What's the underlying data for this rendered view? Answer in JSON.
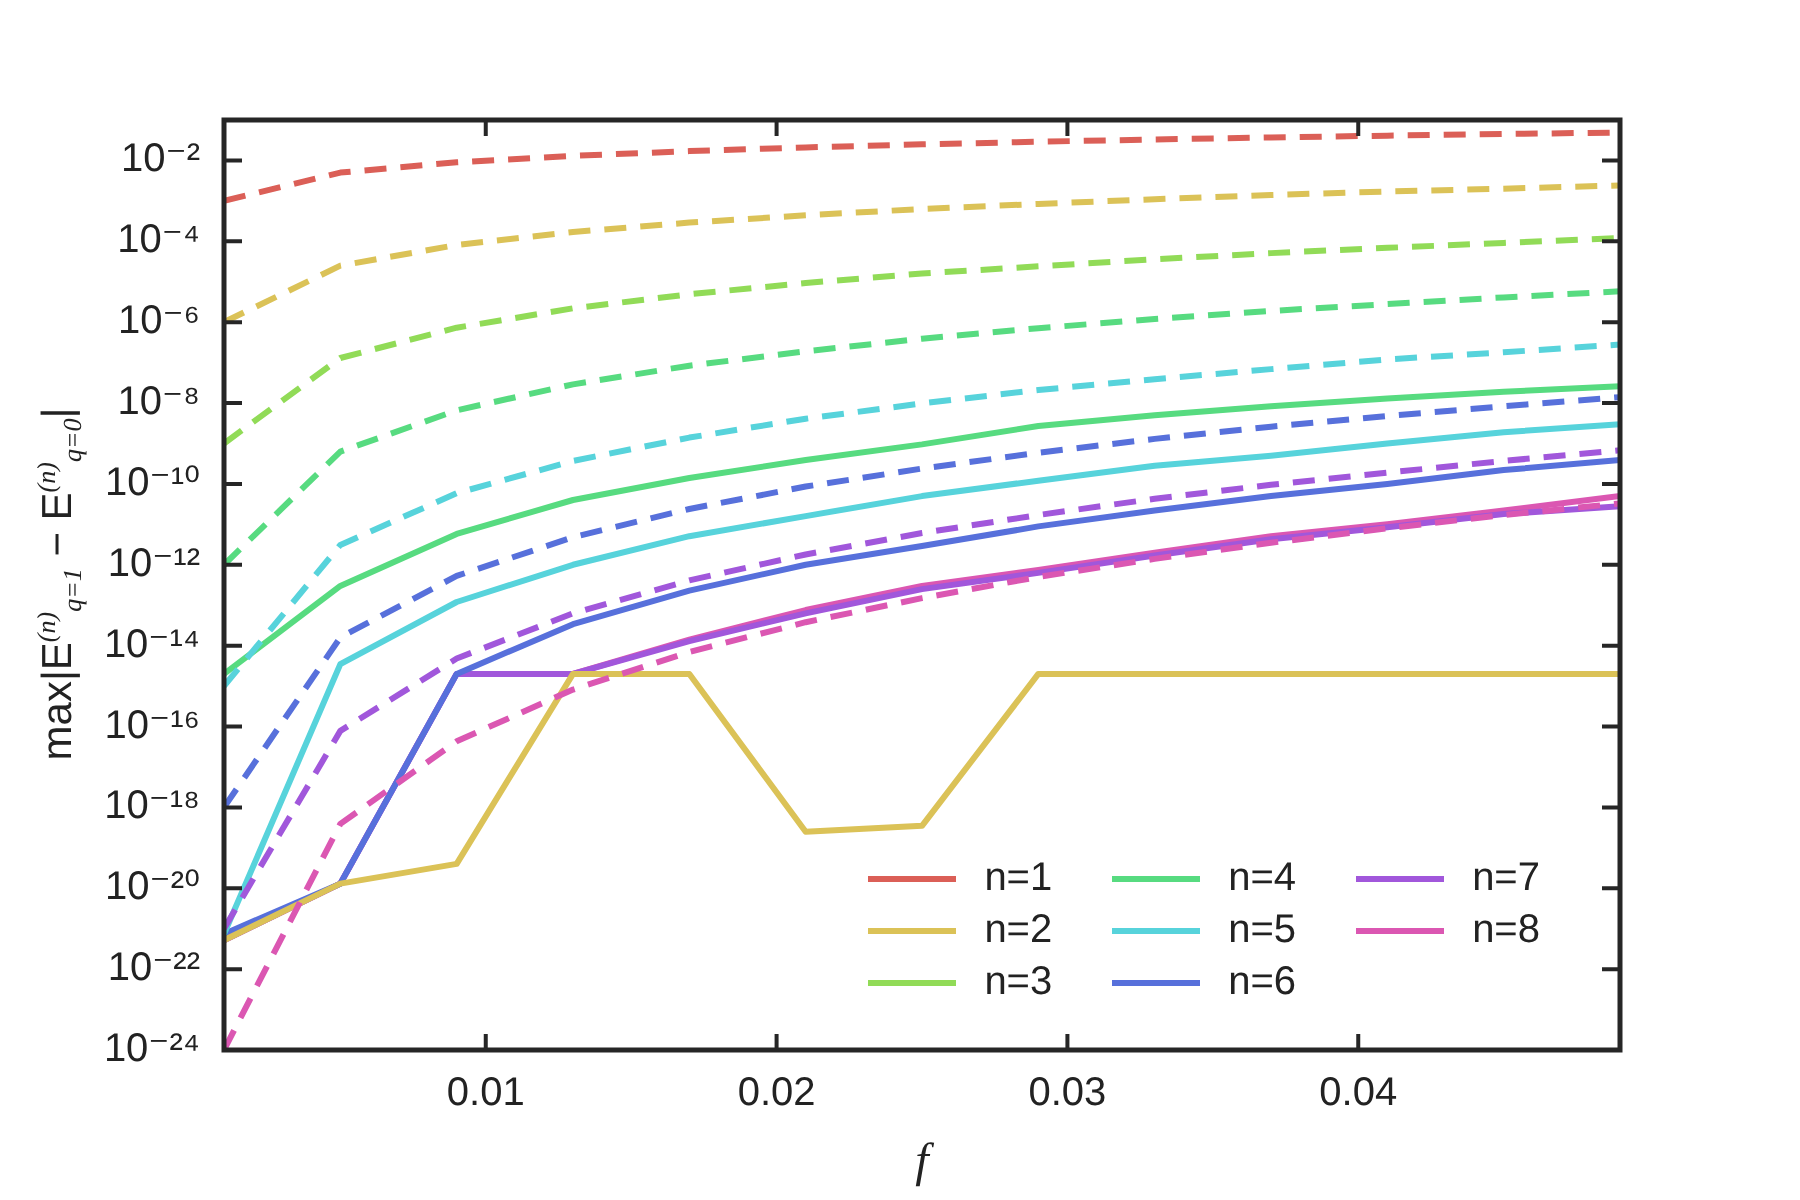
{
  "chart_data": {
    "type": "line",
    "xlabel": "f",
    "ylabel": "max|E$^{(n)}$$_{q=1}$ − E$^{(n)}$$_{q=0}$|",
    "x": [
      0.001,
      0.005,
      0.009,
      0.013,
      0.017,
      0.021,
      0.025,
      0.029,
      0.033,
      0.037,
      0.041,
      0.045,
      0.049
    ],
    "xlim": [
      0.001,
      0.049
    ],
    "xticks": [
      0.01,
      0.02,
      0.03,
      0.04
    ],
    "ylim": [
      1e-24,
      0.1
    ],
    "log": "y",
    "yticks": [
      {
        "value": 1e-24,
        "label": "10⁻²⁴"
      },
      {
        "value": 1e-22,
        "label": "10⁻²²"
      },
      {
        "value": 1e-20,
        "label": "10⁻²⁰"
      },
      {
        "value": 1e-18,
        "label": "10⁻¹⁸"
      },
      {
        "value": 1e-16,
        "label": "10⁻¹⁶"
      },
      {
        "value": 1e-14,
        "label": "10⁻¹⁴"
      },
      {
        "value": 1e-12,
        "label": "10⁻¹²"
      },
      {
        "value": 1e-10,
        "label": "10⁻¹⁰"
      },
      {
        "value": 1e-08,
        "label": "10⁻⁸"
      },
      {
        "value": 1e-06,
        "label": "10⁻⁶"
      },
      {
        "value": 0.0001,
        "label": "10⁻⁴"
      },
      {
        "value": 0.01,
        "label": "10⁻²"
      }
    ],
    "grid": false,
    "legend": "bottom right",
    "marker": "none",
    "line_style": "solid",
    "series": [
      {
        "color": "#db5f57",
        "line_style": "dashed",
        "values": [
          0.001,
          0.005,
          0.009,
          0.013,
          0.017,
          0.021,
          0.025,
          0.029,
          0.033,
          0.037,
          0.041,
          0.045,
          0.049
        ]
      },
      {
        "color": "#dbc257",
        "line_style": "dashed",
        "values": [
          1e-06,
          2.5e-05,
          8.1e-05,
          0.00017,
          0.00029,
          0.00044,
          0.00063,
          0.00084,
          0.0011,
          0.0014,
          0.0017,
          0.002,
          0.0024
        ]
      },
      {
        "color": "#91db57",
        "line_style": "dashed",
        "values": [
          1e-09,
          1.3e-07,
          7.3e-07,
          2.2e-06,
          4.9e-06,
          9.3e-06,
          1.6e-05,
          2.4e-05,
          3.6e-05,
          5.1e-05,
          6.9e-05,
          9.1e-05,
          0.00012
        ]
      },
      {
        "color": "#57db80",
        "line_style": "dashed",
        "values": [
          1e-12,
          6.3e-10,
          6.6e-09,
          2.9e-08,
          8.4e-08,
          1.9e-07,
          3.9e-07,
          7.1e-07,
          1.2e-06,
          1.9e-06,
          2.8e-06,
          4.1e-06,
          5.8e-06
        ]
      },
      {
        "color": "#57d3db",
        "line_style": "dashed",
        "values": [
          1e-15,
          3.1e-12,
          5.9e-11,
          3.7e-10,
          1.4e-09,
          4.1e-09,
          9.8e-09,
          2.1e-08,
          3.9e-08,
          6.9e-08,
          1.2e-07,
          1.8e-07,
          2.8e-07
        ]
      },
      {
        "color": "#5770db",
        "line_style": "dashed",
        "values": [
          1e-18,
          1.6e-14,
          5.3e-13,
          4.8e-12,
          2.4e-11,
          8.6e-11,
          2.4e-10,
          5.9e-10,
          1.3e-09,
          2.6e-09,
          4.8e-09,
          8.3e-09,
          1.4e-08
        ]
      },
      {
        "color": "#a157db",
        "line_style": "dashed",
        "values": [
          1e-21,
          7.8e-17,
          4.8e-15,
          6.3e-14,
          4.1e-13,
          1.8e-12,
          6.1e-12,
          1.7e-11,
          4.3e-11,
          9.5e-11,
          1.9e-10,
          3.7e-10,
          6.8e-10
        ]
      },
      {
        "color": "#db57b2",
        "line_style": "dashed",
        "values": [
          1e-24,
          3.9e-19,
          4.3e-17,
          8.2e-16,
          7e-15,
          3.8e-14,
          1.5e-13,
          5e-13,
          1.4e-12,
          3.5e-12,
          8e-12,
          1.7e-11,
          3.3e-11
        ]
      },
      {
        "name": "n=1",
        "color": "#db5f57",
        "values": [
          null,
          null,
          null,
          null,
          null,
          null,
          null,
          null,
          null,
          null,
          null,
          null,
          null
        ]
      },
      {
        "name": "n=2",
        "color": "#dbc257",
        "values": [
          5.2e-22,
          1.3e-20,
          4e-20,
          2e-15,
          2e-15,
          2.5e-19,
          3.5e-19,
          2e-15,
          2e-15,
          2e-15,
          2e-15,
          2e-15,
          2e-15
        ]
      },
      {
        "name": "n=3",
        "color": "#91db57",
        "values": [
          null,
          null,
          null,
          null,
          null,
          null,
          null,
          null,
          null,
          null,
          null,
          null,
          null
        ]
      },
      {
        "name": "n=4",
        "color": "#57db80",
        "values": [
          2e-15,
          3e-13,
          5.8e-12,
          4e-11,
          1.4e-10,
          3.9e-10,
          9.5e-10,
          2.7e-09,
          5e-09,
          8.3e-09,
          1.3e-08,
          1.9e-08,
          2.6e-08
        ]
      },
      {
        "name": "n=5",
        "color": "#57d3db",
        "values": [
          7.4e-22,
          3.5e-15,
          1.2e-13,
          1e-12,
          5.1e-12,
          1.6e-11,
          5e-11,
          1.2e-10,
          2.8e-10,
          5e-10,
          1e-09,
          1.9e-09,
          3e-09
        ]
      },
      {
        "name": "n=6",
        "color": "#5770db",
        "values": [
          7.4e-22,
          1.3e-20,
          2e-15,
          3.4e-14,
          2.3e-13,
          1e-12,
          2.9e-12,
          8.9e-12,
          2.2e-11,
          5e-11,
          1e-10,
          2.2e-10,
          3.9e-10
        ]
      },
      {
        "name": "n=7",
        "color": "#a157db",
        "values": [
          5.2e-22,
          1.3e-20,
          2e-15,
          2e-15,
          1.3e-14,
          6.3e-14,
          2.5e-13,
          6.3e-13,
          1.7e-12,
          4.3e-12,
          8.5e-12,
          1.8e-11,
          2.8e-11
        ]
      },
      {
        "name": "n=8",
        "color": "#db57b2",
        "values": [
          5.2e-22,
          1.3e-20,
          2e-15,
          2e-15,
          1.4e-14,
          7.6e-14,
          3e-13,
          7.4e-13,
          2e-12,
          5.1e-12,
          1e-11,
          2.2e-11,
          5e-11
        ]
      }
    ]
  }
}
